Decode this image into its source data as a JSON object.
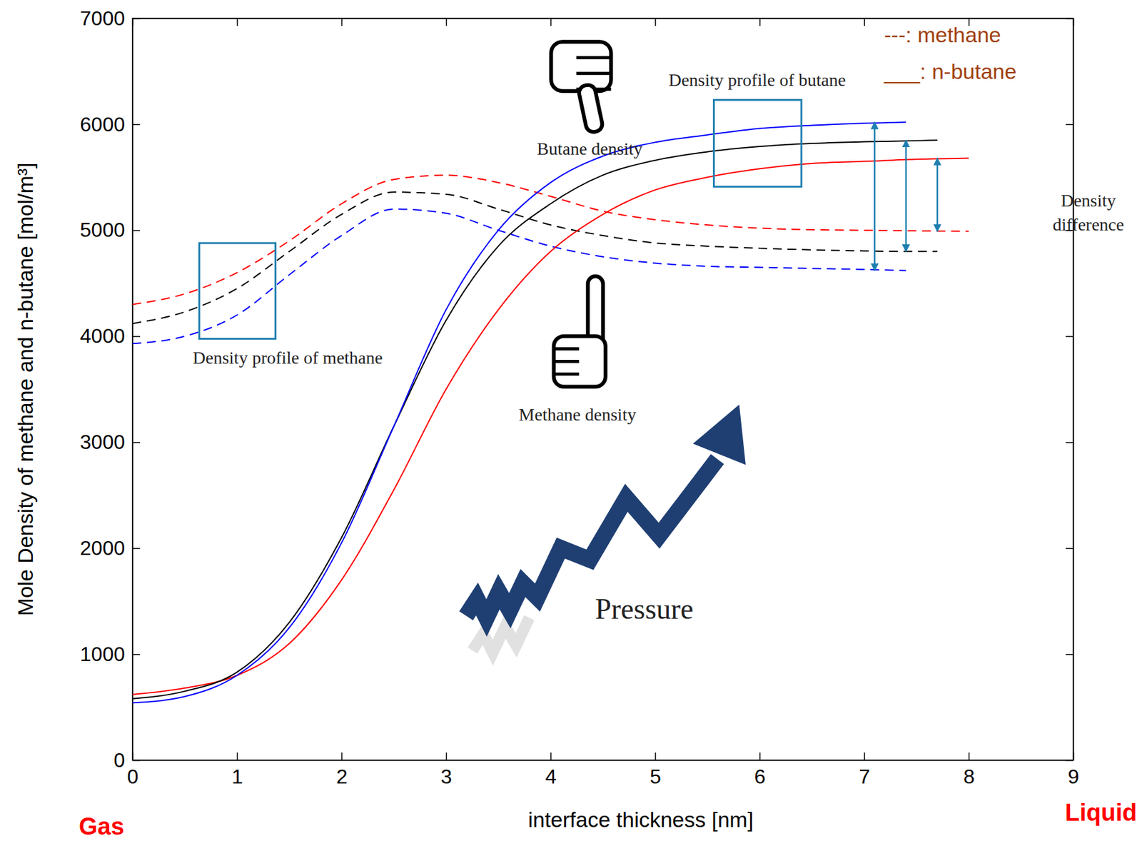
{
  "chart_data": {
    "type": "line",
    "x_label": "interface thickness [nm]",
    "y_label": "Mole Density of methane and n-butane [mol/m³]",
    "xlim": [
      0,
      9
    ],
    "xticks": [
      0,
      1,
      2,
      3,
      4,
      5,
      6,
      7,
      8,
      9
    ],
    "ylim": [
      0,
      7000
    ],
    "yticks": [
      0,
      1000,
      2000,
      3000,
      4000,
      5000,
      6000,
      7000
    ],
    "legend_labels": [
      "---: methane",
      "___: n-butane"
    ],
    "side_labels": [
      "Gas",
      "Liquid"
    ],
    "annotations": [
      "Density profile of butane",
      "Butane density",
      "Density profile of methane",
      "Methane density",
      "Pressure",
      "Density difference"
    ],
    "series": [
      {
        "color": "#ff0000",
        "line_style": "dashed",
        "x": [
          0,
          0.5,
          1,
          1.5,
          2,
          2.5,
          3,
          3.5,
          4,
          4.5,
          5,
          5.5,
          6,
          6.5,
          7,
          7.5,
          8
        ],
        "values": [
          4300,
          4400,
          4600,
          4900,
          5250,
          5480,
          5520,
          5450,
          5320,
          5180,
          5100,
          5050,
          5020,
          5005,
          5000,
          4995,
          4990
        ]
      },
      {
        "color": "#000000",
        "line_style": "dashed",
        "x": [
          0,
          0.5,
          1,
          1.5,
          2,
          2.5,
          3,
          3.5,
          4,
          4.5,
          5,
          5.5,
          6,
          6.5,
          7,
          7.5,
          7.7
        ],
        "values": [
          4120,
          4230,
          4450,
          4800,
          5150,
          5360,
          5340,
          5200,
          5050,
          4950,
          4880,
          4850,
          4830,
          4815,
          4805,
          4800,
          4800
        ]
      },
      {
        "color": "#0000ff",
        "line_style": "dashed",
        "x": [
          0,
          0.5,
          1,
          1.5,
          2,
          2.5,
          3,
          3.5,
          4,
          4.5,
          5,
          5.5,
          6,
          6.5,
          7,
          7.4
        ],
        "values": [
          3930,
          4000,
          4200,
          4580,
          4950,
          5200,
          5160,
          5000,
          4850,
          4750,
          4690,
          4660,
          4650,
          4640,
          4630,
          4620
        ]
      },
      {
        "color": "#ff0000",
        "line_style": "solid",
        "x": [
          0,
          0.5,
          1,
          1.5,
          2,
          2.5,
          3,
          3.5,
          4,
          4.5,
          5,
          5.5,
          6,
          6.5,
          7,
          7.5,
          8
        ],
        "values": [
          620,
          680,
          800,
          1100,
          1700,
          2550,
          3500,
          4250,
          4800,
          5150,
          5380,
          5500,
          5580,
          5630,
          5650,
          5670,
          5680
        ]
      },
      {
        "color": "#000000",
        "line_style": "solid",
        "x": [
          0,
          0.5,
          1,
          1.5,
          2,
          2.5,
          3,
          3.5,
          4,
          4.5,
          5,
          5.5,
          6,
          6.5,
          7,
          7.5,
          7.7
        ],
        "values": [
          580,
          650,
          830,
          1300,
          2100,
          3150,
          4150,
          4850,
          5250,
          5520,
          5660,
          5740,
          5790,
          5820,
          5835,
          5845,
          5850
        ]
      },
      {
        "color": "#0000ff",
        "line_style": "solid",
        "x": [
          0,
          0.5,
          1,
          1.5,
          2,
          2.5,
          3,
          3.5,
          4,
          4.5,
          5,
          5.5,
          6,
          6.5,
          7,
          7.4
        ],
        "values": [
          540,
          600,
          800,
          1250,
          2050,
          3150,
          4250,
          5000,
          5450,
          5700,
          5830,
          5900,
          5960,
          5990,
          6010,
          6020
        ]
      }
    ]
  }
}
